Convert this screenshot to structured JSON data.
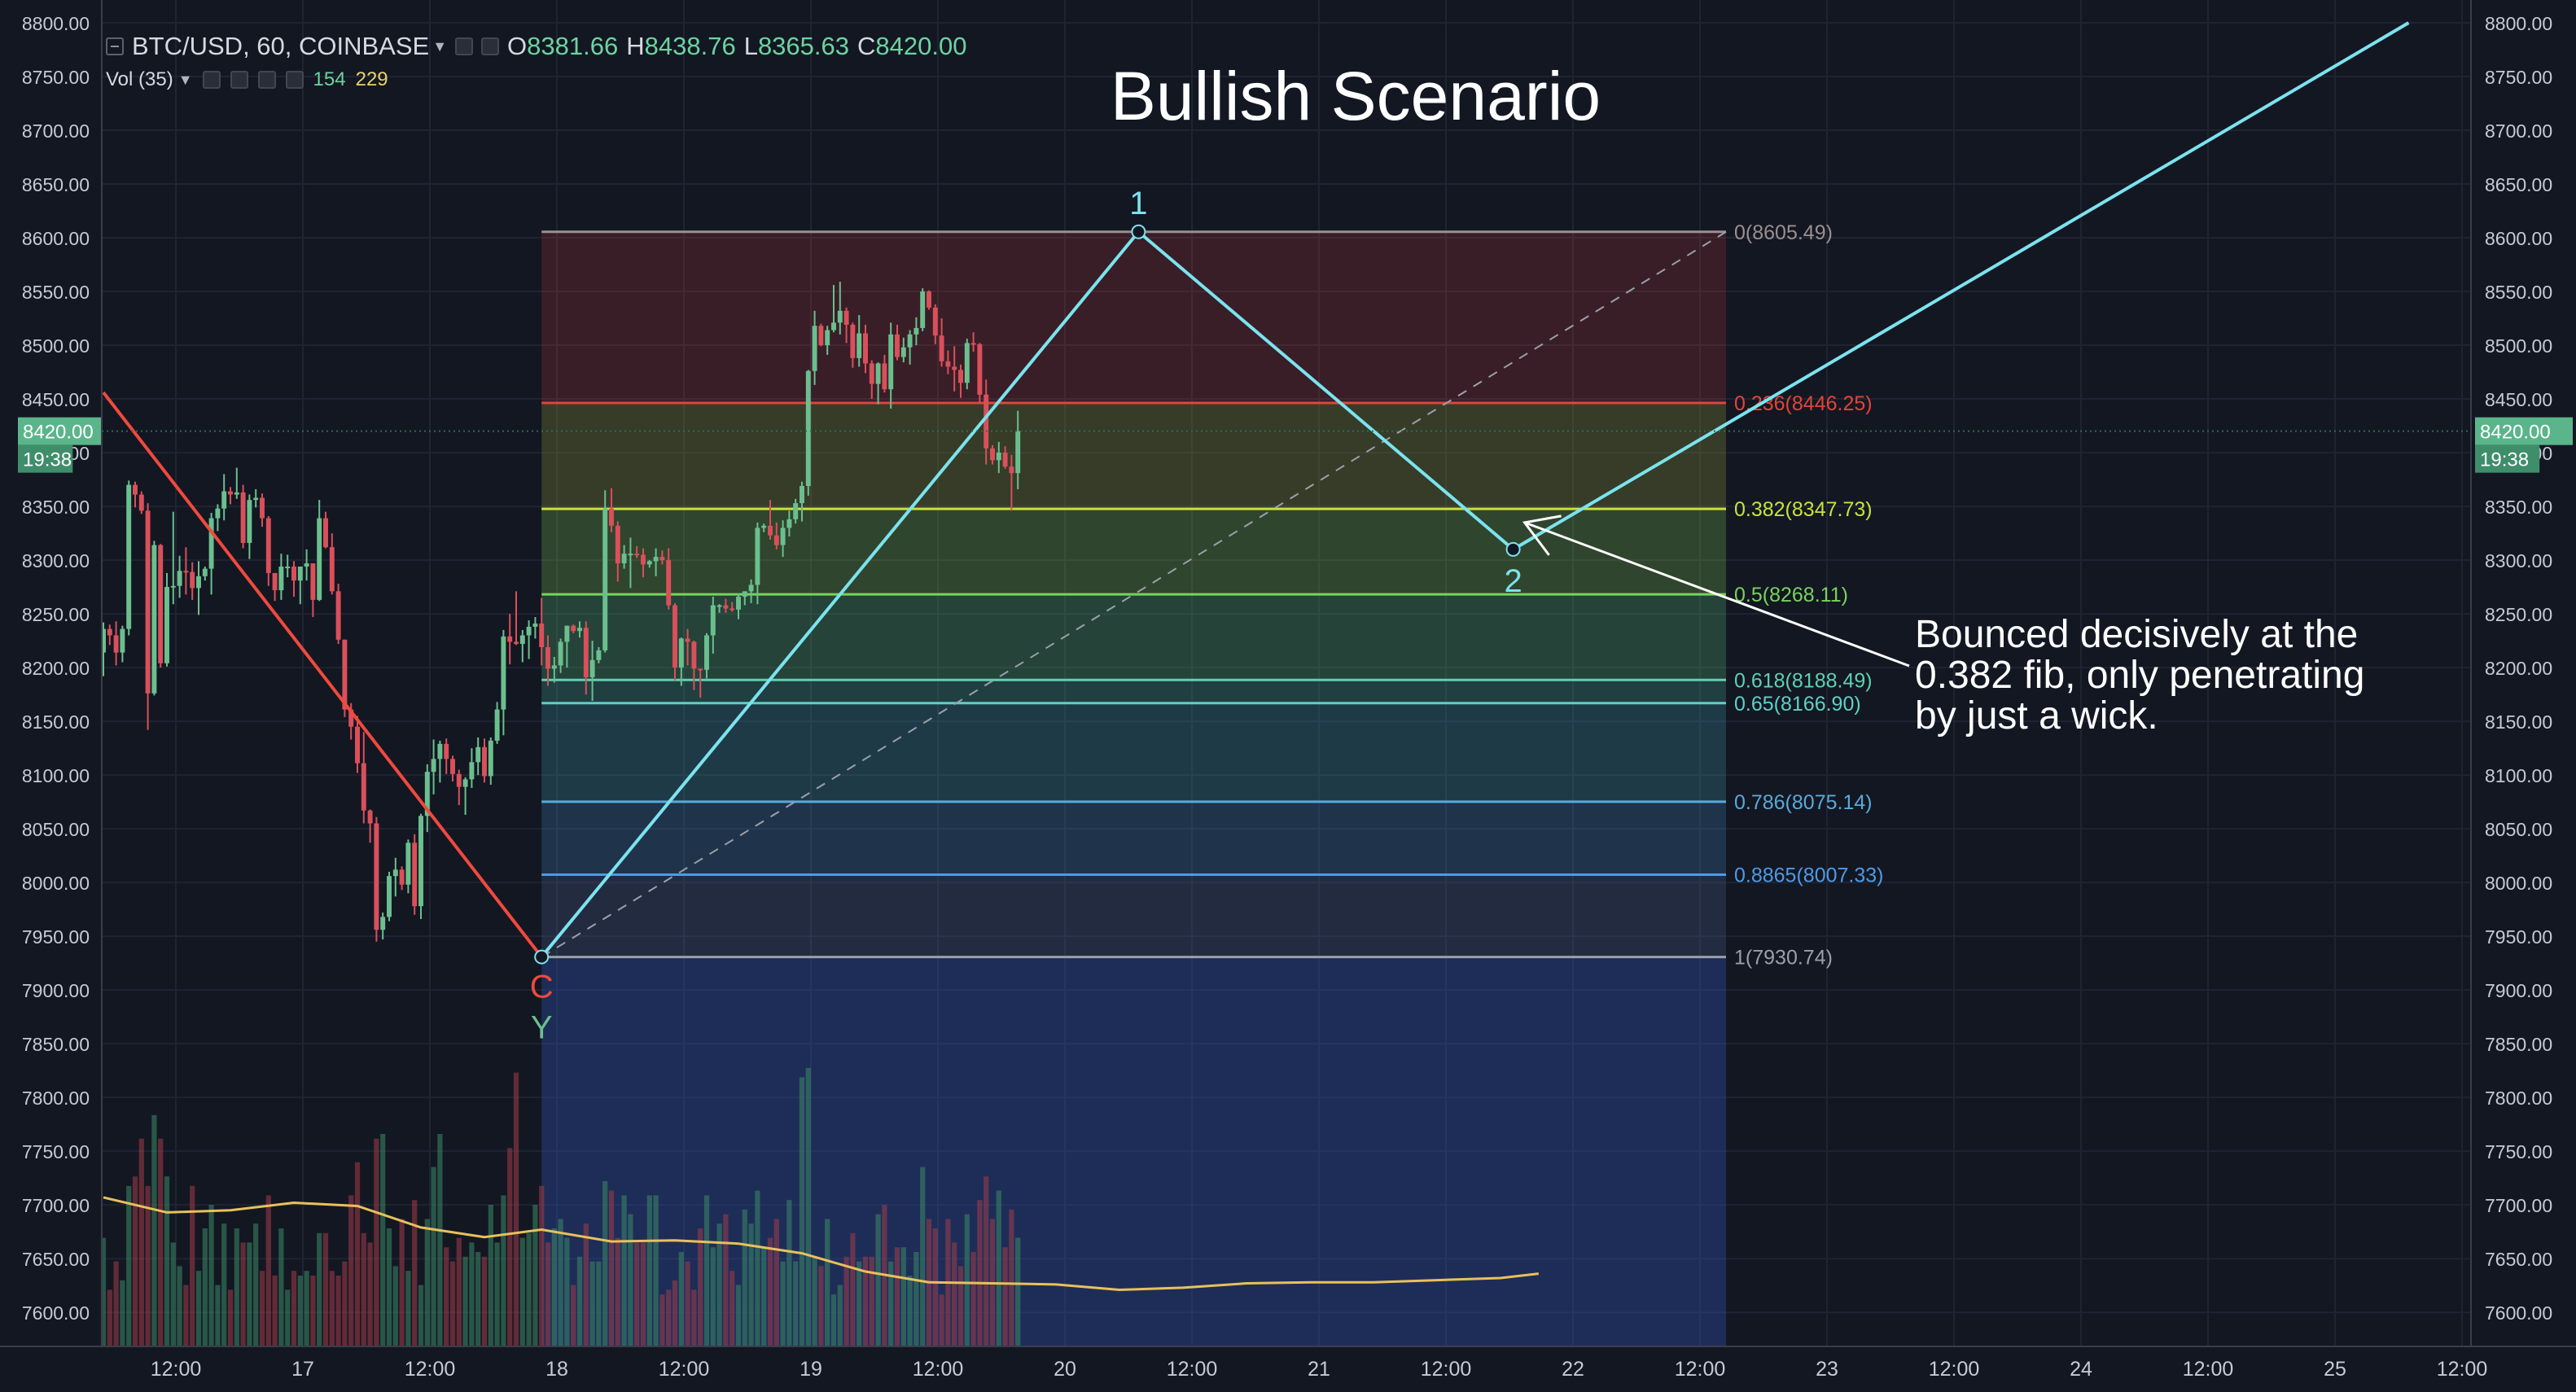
{
  "header": {
    "symbol": "BTC/USD, 60, COINBASE",
    "ohlc": [
      {
        "key": "O",
        "value": "8381.66"
      },
      {
        "key": "H",
        "value": "8438.76"
      },
      {
        "key": "L",
        "value": "8365.63"
      },
      {
        "key": "C",
        "value": "8420.00"
      }
    ],
    "volume_label": "Vol (35)",
    "volume_value": "154",
    "volume_ma": "229"
  },
  "colors": {
    "background": "#131722",
    "up_candle": "#6bbf8e",
    "down_candle": "#d9505b",
    "wave_line": "#7be3ee",
    "abc_line": "#f0493e",
    "volume_ma_line": "#e8c15a"
  },
  "chart_data": {
    "type": "candlestick",
    "title": "Bullish Scenario",
    "annotation": "Bounced decisively at the\n0.382 fib, only penetrating\nby just a wick.",
    "ylim": [
      7585,
      8800
    ],
    "y_ticks": [
      "8800.00",
      "8750.00",
      "8700.00",
      "8650.00",
      "8600.00",
      "8550.00",
      "8500.00",
      "8450.00",
      "8400.00",
      "8350.00",
      "8300.00",
      "8250.00",
      "8200.00",
      "8150.00",
      "8100.00",
      "8050.00",
      "8000.00",
      "7950.00",
      "7900.00",
      "7850.00",
      "7800.00",
      "7750.00",
      "7700.00",
      "7650.00",
      "7600.00"
    ],
    "x_ticks": [
      "12:00",
      "17",
      "12:00",
      "18",
      "12:00",
      "19",
      "12:00",
      "20",
      "12:00",
      "21",
      "12:00",
      "22",
      "12:00",
      "23",
      "12:00",
      "24",
      "12:00",
      "25",
      "12:00"
    ],
    "current_price": "8420.00",
    "countdown": "19:38",
    "fib_levels": [
      {
        "label": "0(8605.49)",
        "price": 8605.49,
        "color": "#9b8f8f"
      },
      {
        "label": "0.236(8446.25)",
        "price": 8446.25,
        "color": "#e0453a"
      },
      {
        "label": "0.382(8347.73)",
        "price": 8347.73,
        "color": "#c8e23c"
      },
      {
        "label": "0.5(8268.11)",
        "price": 8268.11,
        "color": "#7ad35c"
      },
      {
        "label": "0.618(8188.49)",
        "price": 8188.49,
        "color": "#5fd0b3"
      },
      {
        "label": "0.65(8166.90)",
        "price": 8166.9,
        "color": "#5fd0c8"
      },
      {
        "label": "0.786(8075.14)",
        "price": 8075.14,
        "color": "#5aa9d8"
      },
      {
        "label": "0.8865(8007.33)",
        "price": 8007.33,
        "color": "#4f9ae6"
      },
      {
        "label": "1(7930.74)",
        "price": 7930.74,
        "color": "#9aa0aa"
      }
    ],
    "wave_labels": [
      {
        "label": "C",
        "color": "#f0493e",
        "bar": 69,
        "price": 7930.74
      },
      {
        "label": "Y",
        "color": "#6bbf8e",
        "bar": 69,
        "price": 7930.74
      },
      {
        "label": "1",
        "color": "#7be3ee",
        "bar": 163,
        "price": 8605.49
      },
      {
        "label": "2",
        "color": "#7be3ee",
        "bar": 222,
        "price": 8310
      }
    ],
    "wave_line": [
      [
        69,
        7930.74
      ],
      [
        163,
        8605.49
      ],
      [
        222,
        8310
      ],
      [
        363,
        8800
      ]
    ],
    "abc_line": [
      [
        0,
        8456
      ],
      [
        69,
        7930.74
      ]
    ],
    "candles": [
      [
        8214,
        8242,
        8192,
        8236,
        35
      ],
      [
        8236,
        8240,
        8221,
        8230,
        24
      ],
      [
        8230,
        8243,
        8202,
        8214,
        30
      ],
      [
        8214,
        8239,
        8205,
        8236,
        26
      ],
      [
        8236,
        8374,
        8230,
        8370,
        46
      ],
      [
        8370,
        8373,
        8349,
        8361,
        48
      ],
      [
        8361,
        8364,
        8343,
        8346,
        56
      ],
      [
        8346,
        8353,
        8142,
        8176,
        46
      ],
      [
        8176,
        8318,
        8174,
        8314,
        61
      ],
      [
        8314,
        8315,
        8200,
        8204,
        56
      ],
      [
        8204,
        8288,
        8201,
        8275,
        48
      ],
      [
        8275,
        8345,
        8259,
        8276,
        34
      ],
      [
        8276,
        8304,
        8265,
        8290,
        29
      ],
      [
        8290,
        8312,
        8268,
        8289,
        25
      ],
      [
        8289,
        8298,
        8263,
        8274,
        46
      ],
      [
        8274,
        8299,
        8249,
        8285,
        28
      ],
      [
        8285,
        8294,
        8281,
        8292,
        37
      ],
      [
        8292,
        8344,
        8268,
        8339,
        42
      ],
      [
        8339,
        8352,
        8327,
        8348,
        25
      ],
      [
        8348,
        8380,
        8337,
        8364,
        38
      ],
      [
        8364,
        8368,
        8352,
        8361,
        24
      ],
      [
        8361,
        8386,
        8357,
        8363,
        37
      ],
      [
        8363,
        8370,
        8311,
        8316,
        34
      ],
      [
        8316,
        8361,
        8301,
        8356,
        34
      ],
      [
        8356,
        8366,
        8349,
        8358,
        38
      ],
      [
        8358,
        8362,
        8331,
        8339,
        28
      ],
      [
        8339,
        8341,
        8276,
        8288,
        44
      ],
      [
        8288,
        8288,
        8262,
        8272,
        27
      ],
      [
        8272,
        8306,
        8263,
        8294,
        37
      ],
      [
        8294,
        8305,
        8284,
        8294,
        24
      ],
      [
        8294,
        8299,
        8266,
        8281,
        28
      ],
      [
        8281,
        8294,
        8259,
        8294,
        27
      ],
      [
        8294,
        8310,
        8281,
        8297,
        28
      ],
      [
        8297,
        8297,
        8247,
        8263,
        27
      ],
      [
        8263,
        8356,
        8262,
        8339,
        36
      ],
      [
        8339,
        8345,
        8311,
        8312,
        36
      ],
      [
        8312,
        8325,
        8268,
        8271,
        28
      ],
      [
        8271,
        8278,
        8222,
        8226,
        27
      ],
      [
        8226,
        8226,
        8154,
        8161,
        30
      ],
      [
        8161,
        8167,
        8133,
        8145,
        44
      ],
      [
        8145,
        8155,
        8102,
        8111,
        51
      ],
      [
        8111,
        8140,
        8055,
        8067,
        36
      ],
      [
        8067,
        8068,
        8037,
        8055,
        34
      ],
      [
        8055,
        8061,
        7945,
        7956,
        56
      ],
      [
        7956,
        7972,
        7947,
        7968,
        57
      ],
      [
        7968,
        8010,
        7964,
        8006,
        37
      ],
      [
        8006,
        8023,
        7987,
        8012,
        29
      ],
      [
        8012,
        8015,
        7993,
        7998,
        39
      ],
      [
        7998,
        8040,
        7990,
        8037,
        28
      ],
      [
        8037,
        8045,
        7970,
        7978,
        43
      ],
      [
        7978,
        8064,
        7966,
        8062,
        25
      ],
      [
        8062,
        8110,
        8047,
        8103,
        39
      ],
      [
        8103,
        8133,
        8082,
        8115,
        50
      ],
      [
        8115,
        8132,
        8093,
        8129,
        57
      ],
      [
        8129,
        8134,
        8101,
        8115,
        33
      ],
      [
        8115,
        8118,
        8094,
        8101,
        30
      ],
      [
        8101,
        8105,
        8072,
        8089,
        35
      ],
      [
        8089,
        8098,
        8063,
        8096,
        31
      ],
      [
        8096,
        8125,
        8088,
        8112,
        34
      ],
      [
        8112,
        8135,
        8100,
        8126,
        32
      ],
      [
        8126,
        8134,
        8093,
        8099,
        31
      ],
      [
        8099,
        8135,
        8091,
        8132,
        42
      ],
      [
        8132,
        8168,
        8129,
        8161,
        34
      ],
      [
        8161,
        8235,
        8137,
        8229,
        44
      ],
      [
        8229,
        8250,
        8203,
        8224,
        54
      ],
      [
        8224,
        8271,
        8221,
        8222,
        70
      ],
      [
        8222,
        8235,
        8205,
        8230,
        35
      ],
      [
        8230,
        8244,
        8208,
        8238,
        36
      ],
      [
        8238,
        8247,
        8227,
        8241,
        42
      ],
      [
        8241,
        8265,
        8202,
        8219,
        46
      ],
      [
        8219,
        8230,
        8183,
        8199,
        34
      ],
      [
        8199,
        8210,
        8186,
        8202,
        37
      ],
      [
        8202,
        8227,
        8195,
        8224,
        39
      ],
      [
        8224,
        8239,
        8200,
        8239,
        35
      ],
      [
        8239,
        8240,
        8232,
        8234,
        25
      ],
      [
        8234,
        8243,
        8228,
        8237,
        31
      ],
      [
        8237,
        8243,
        8175,
        8191,
        38
      ],
      [
        8191,
        8225,
        8169,
        8207,
        30
      ],
      [
        8207,
        8219,
        8204,
        8216,
        30
      ],
      [
        8216,
        8365,
        8214,
        8348,
        47
      ],
      [
        8348,
        8367,
        8326,
        8332,
        45
      ],
      [
        8332,
        8336,
        8280,
        8297,
        35
      ],
      [
        8297,
        8314,
        8292,
        8306,
        44
      ],
      [
        8306,
        8321,
        8274,
        8306,
        40
      ],
      [
        8306,
        8313,
        8302,
        8305,
        34
      ],
      [
        8305,
        8311,
        8284,
        8296,
        34
      ],
      [
        8296,
        8300,
        8293,
        8299,
        44
      ],
      [
        8299,
        8311,
        8285,
        8303,
        44
      ],
      [
        8303,
        8309,
        8296,
        8300,
        23
      ],
      [
        8300,
        8311,
        8254,
        8258,
        24
      ],
      [
        8258,
        8260,
        8188,
        8200,
        26
      ],
      [
        8200,
        8228,
        8183,
        8227,
        32
      ],
      [
        8227,
        8236,
        8202,
        8224,
        30
      ],
      [
        8224,
        8225,
        8179,
        8199,
        24
      ],
      [
        8199,
        8199,
        8172,
        8198,
        37
      ],
      [
        8198,
        8232,
        8190,
        8230,
        44
      ],
      [
        8230,
        8266,
        8213,
        8258,
        33
      ],
      [
        8258,
        8259,
        8251,
        8258,
        38
      ],
      [
        8258,
        8264,
        8251,
        8255,
        40
      ],
      [
        8255,
        8261,
        8252,
        8254,
        28
      ],
      [
        8254,
        8269,
        8245,
        8266,
        25
      ],
      [
        8266,
        8271,
        8258,
        8271,
        41
      ],
      [
        8271,
        8282,
        8260,
        8277,
        38
      ],
      [
        8277,
        8335,
        8259,
        8330,
        45
      ],
      [
        8330,
        8334,
        8326,
        8332,
        33
      ],
      [
        8332,
        8356,
        8319,
        8323,
        35
      ],
      [
        8323,
        8335,
        8310,
        8314,
        39
      ],
      [
        8314,
        8337,
        8303,
        8330,
        30
      ],
      [
        8330,
        8346,
        8322,
        8338,
        43
      ],
      [
        8338,
        8357,
        8334,
        8353,
        30
      ],
      [
        8353,
        8373,
        8336,
        8369,
        69
      ],
      [
        8369,
        8477,
        8360,
        8476,
        71
      ],
      [
        8476,
        8532,
        8463,
        8518,
        31
      ],
      [
        8518,
        8520,
        8499,
        8500,
        29
      ],
      [
        8500,
        8518,
        8491,
        8514,
        39
      ],
      [
        8514,
        8556,
        8512,
        8521,
        23
      ],
      [
        8521,
        8559,
        8510,
        8532,
        25
      ],
      [
        8532,
        8535,
        8502,
        8519,
        31
      ],
      [
        8519,
        8521,
        8479,
        8488,
        36
      ],
      [
        8488,
        8528,
        8480,
        8511,
        30
      ],
      [
        8511,
        8519,
        8474,
        8483,
        31
      ],
      [
        8483,
        8486,
        8450,
        8464,
        31
      ],
      [
        8464,
        8484,
        8445,
        8483,
        40
      ],
      [
        8483,
        8491,
        8456,
        8459,
        42
      ],
      [
        8459,
        8521,
        8441,
        8510,
        30
      ],
      [
        8510,
        8519,
        8486,
        8489,
        33
      ],
      [
        8489,
        8507,
        8484,
        8498,
        33
      ],
      [
        8498,
        8514,
        8482,
        8510,
        27
      ],
      [
        8510,
        8526,
        8500,
        8516,
        32
      ],
      [
        8516,
        8553,
        8513,
        8550,
        50
      ],
      [
        8550,
        8551,
        8533,
        8535,
        39
      ],
      [
        8535,
        8538,
        8501,
        8509,
        37
      ],
      [
        8509,
        8525,
        8480,
        8485,
        23
      ],
      [
        8485,
        8495,
        8473,
        8480,
        39
      ],
      [
        8480,
        8499,
        8457,
        8477,
        34
      ],
      [
        8477,
        8482,
        8451,
        8465,
        29
      ],
      [
        8465,
        8506,
        8459,
        8502,
        40
      ],
      [
        8502,
        8512,
        8494,
        8501,
        32
      ],
      [
        8501,
        8502,
        8446,
        8454,
        43
      ],
      [
        8454,
        8468,
        8389,
        8404,
        48
      ],
      [
        8404,
        8407,
        8389,
        8393,
        39
      ],
      [
        8393,
        8410,
        8381,
        8400,
        45
      ],
      [
        8400,
        8406,
        8385,
        8387,
        33
      ],
      [
        8387,
        8398,
        8346,
        8381,
        41
      ],
      [
        8381,
        8439,
        8366,
        8420,
        35
      ]
    ],
    "volume_ma": [
      [
        0,
        7707
      ],
      [
        10,
        7693
      ],
      [
        20,
        7695
      ],
      [
        30,
        7702
      ],
      [
        40,
        7699
      ],
      [
        50,
        7679
      ],
      [
        60,
        7670
      ],
      [
        69,
        7677
      ],
      [
        80,
        7666
      ],
      [
        90,
        7667
      ],
      [
        100,
        7664
      ],
      [
        110,
        7655
      ],
      [
        120,
        7638
      ],
      [
        130,
        7628
      ],
      [
        140,
        7627
      ],
      [
        150,
        7626
      ],
      [
        160,
        7621
      ],
      [
        170,
        7623
      ],
      [
        180,
        7627
      ],
      [
        190,
        7628
      ],
      [
        200,
        7628
      ],
      [
        210,
        7630
      ],
      [
        220,
        7632
      ],
      [
        226,
        7636
      ]
    ]
  }
}
